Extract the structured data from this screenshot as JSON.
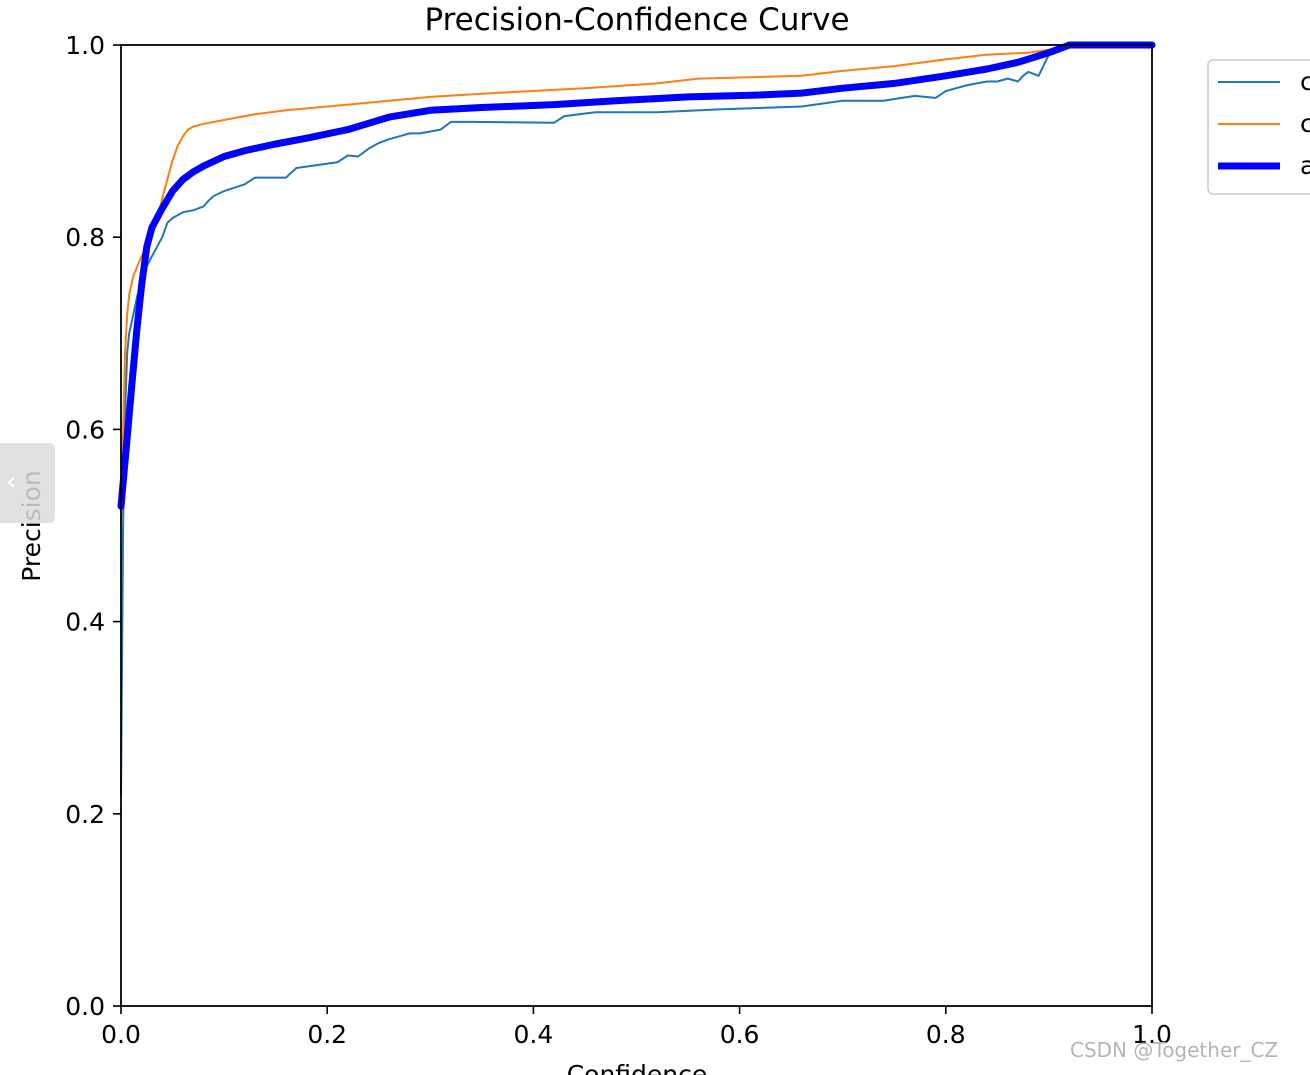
{
  "chart_data": {
    "type": "line",
    "title": "Precision-Confidence Curve",
    "xlabel": "Confidence",
    "ylabel": "Precision",
    "xlim": [
      0,
      1
    ],
    "ylim": [
      0,
      1
    ],
    "xticks": [
      "0.0",
      "0.2",
      "0.4",
      "0.6",
      "0.8",
      "1.0"
    ],
    "yticks": [
      "0.0",
      "0.2",
      "0.4",
      "0.6",
      "0.8",
      "1.0"
    ],
    "grid": false,
    "legend_position": "upper right, outside plot area (cut off)",
    "series": [
      {
        "name": "c",
        "color": "#1f77b4",
        "width": "thin",
        "x": [
          0.0,
          0.002,
          0.004,
          0.006,
          0.008,
          0.012,
          0.016,
          0.02,
          0.025,
          0.03,
          0.035,
          0.04,
          0.045,
          0.05,
          0.06,
          0.07,
          0.08,
          0.085,
          0.09,
          0.1,
          0.12,
          0.13,
          0.16,
          0.17,
          0.21,
          0.22,
          0.23,
          0.24,
          0.25,
          0.26,
          0.27,
          0.28,
          0.29,
          0.3,
          0.31,
          0.32,
          0.34,
          0.42,
          0.43,
          0.46,
          0.52,
          0.58,
          0.66,
          0.7,
          0.74,
          0.77,
          0.79,
          0.8,
          0.81,
          0.82,
          0.83,
          0.84,
          0.85,
          0.86,
          0.87,
          0.875,
          0.88,
          0.885,
          0.89,
          0.9,
          0.91,
          0.93,
          0.95,
          1.0
        ],
        "y": [
          0.22,
          0.5,
          0.62,
          0.68,
          0.7,
          0.72,
          0.74,
          0.75,
          0.77,
          0.78,
          0.79,
          0.8,
          0.815,
          0.82,
          0.826,
          0.828,
          0.832,
          0.838,
          0.843,
          0.848,
          0.855,
          0.862,
          0.862,
          0.872,
          0.878,
          0.885,
          0.884,
          0.892,
          0.898,
          0.902,
          0.905,
          0.908,
          0.908,
          0.91,
          0.912,
          0.92,
          0.92,
          0.919,
          0.926,
          0.93,
          0.93,
          0.933,
          0.936,
          0.942,
          0.942,
          0.947,
          0.945,
          0.952,
          0.955,
          0.958,
          0.96,
          0.962,
          0.962,
          0.965,
          0.962,
          0.968,
          0.972,
          0.97,
          0.968,
          0.99,
          0.996,
          1.0,
          1.0,
          1.0
        ]
      },
      {
        "name": "c",
        "color": "#ff7f0e",
        "width": "thin",
        "x": [
          0.0,
          0.002,
          0.004,
          0.006,
          0.008,
          0.012,
          0.016,
          0.02,
          0.025,
          0.03,
          0.035,
          0.04,
          0.045,
          0.05,
          0.055,
          0.06,
          0.065,
          0.07,
          0.08,
          0.1,
          0.13,
          0.16,
          0.2,
          0.24,
          0.3,
          0.36,
          0.45,
          0.52,
          0.56,
          0.66,
          0.7,
          0.75,
          0.8,
          0.84,
          0.88,
          0.9,
          0.92,
          0.95,
          1.0
        ],
        "y": [
          0.5,
          0.6,
          0.68,
          0.72,
          0.74,
          0.76,
          0.77,
          0.78,
          0.79,
          0.8,
          0.82,
          0.84,
          0.86,
          0.88,
          0.895,
          0.905,
          0.912,
          0.915,
          0.918,
          0.922,
          0.928,
          0.932,
          0.936,
          0.94,
          0.946,
          0.95,
          0.955,
          0.96,
          0.965,
          0.968,
          0.973,
          0.978,
          0.985,
          0.99,
          0.992,
          0.995,
          1.0,
          1.0,
          1.0
        ]
      },
      {
        "name": "a",
        "color": "#0000ff",
        "width": "thick",
        "x": [
          0.0,
          0.005,
          0.01,
          0.015,
          0.02,
          0.025,
          0.03,
          0.04,
          0.05,
          0.06,
          0.07,
          0.08,
          0.1,
          0.12,
          0.15,
          0.18,
          0.22,
          0.26,
          0.3,
          0.35,
          0.42,
          0.48,
          0.55,
          0.62,
          0.66,
          0.7,
          0.75,
          0.8,
          0.84,
          0.87,
          0.9,
          0.92,
          0.94,
          0.97,
          1.0
        ],
        "y": [
          0.52,
          0.58,
          0.64,
          0.7,
          0.75,
          0.79,
          0.81,
          0.83,
          0.848,
          0.86,
          0.868,
          0.874,
          0.884,
          0.89,
          0.897,
          0.903,
          0.912,
          0.925,
          0.932,
          0.935,
          0.938,
          0.942,
          0.946,
          0.948,
          0.95,
          0.955,
          0.96,
          0.968,
          0.975,
          0.982,
          0.992,
          1.0,
          1.0,
          1.0,
          1.0
        ]
      }
    ]
  },
  "watermark": "CSDN @Together_CZ",
  "nav": {
    "prev_glyph": "‹"
  }
}
